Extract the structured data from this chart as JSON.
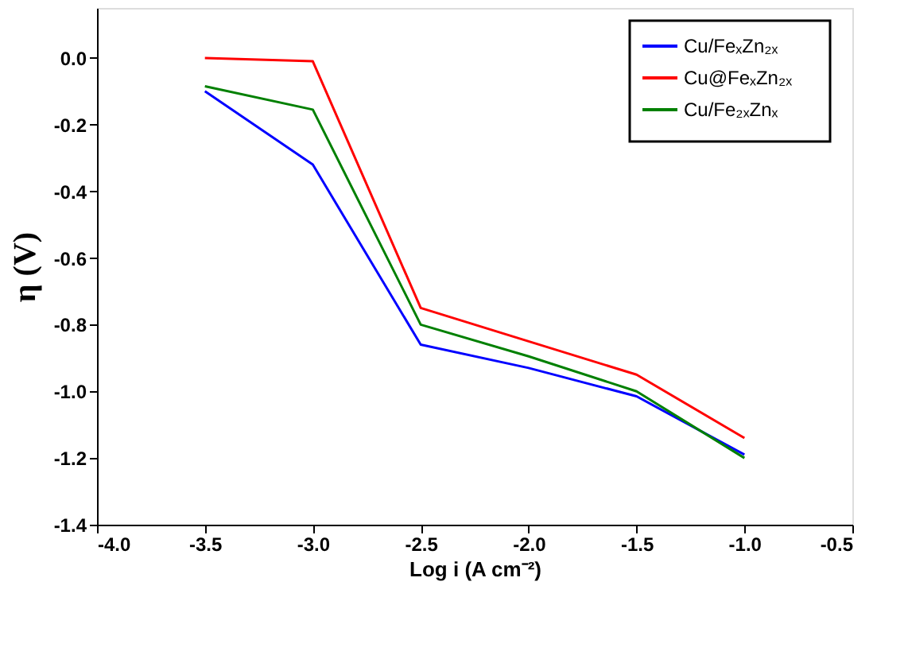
{
  "chart_data": {
    "type": "line",
    "xlabel": "Log i (A cm⁻²)",
    "ylabel": "η (V)",
    "x": [
      -3.5,
      -3.0,
      -2.5,
      -2.0,
      -1.5,
      -1.0
    ],
    "series": [
      {
        "name": "Cu/FeₓZn₂ₓ",
        "color": "#0000ff",
        "values": [
          -0.1,
          -0.32,
          -0.86,
          -0.93,
          -1.015,
          -1.19
        ]
      },
      {
        "name": "Cu@FeₓZn₂ₓ",
        "color": "#ff0000",
        "values": [
          0.0,
          -0.01,
          -0.75,
          -0.85,
          -0.95,
          -1.14
        ]
      },
      {
        "name": "Cu/Fe₂ₓZnₓ",
        "color": "#008000",
        "values": [
          -0.085,
          -0.155,
          -0.8,
          -0.895,
          -1.0,
          -1.2
        ]
      }
    ],
    "xlim": [
      -4.0,
      -0.5
    ],
    "xticks": [
      {
        "value": -4.0,
        "label": "-4.0"
      },
      {
        "value": -3.5,
        "label": "-3.5"
      },
      {
        "value": -3.0,
        "label": "-3.0"
      },
      {
        "value": -2.5,
        "label": "-2.5"
      },
      {
        "value": -2.0,
        "label": "-2.0"
      },
      {
        "value": -1.5,
        "label": "-1.5"
      },
      {
        "value": -1.0,
        "label": "-1.0"
      },
      {
        "value": -0.5,
        "label": "-0.5"
      }
    ],
    "ylim": [
      -1.4,
      0.15
    ],
    "yticks": [
      {
        "value": -1.4,
        "label": "-1.4"
      },
      {
        "value": -1.2,
        "label": "-1.2"
      },
      {
        "value": -1.0,
        "label": "-1.0"
      },
      {
        "value": -0.8,
        "label": "-0.8"
      },
      {
        "value": -0.6,
        "label": "-0.6"
      },
      {
        "value": -0.4,
        "label": "-0.4"
      },
      {
        "value": -0.2,
        "label": "-0.2"
      },
      {
        "value": 0.0,
        "label": "0.0"
      }
    ],
    "grid": false,
    "legend": "top right",
    "marker": "none",
    "line_style": "solid"
  }
}
